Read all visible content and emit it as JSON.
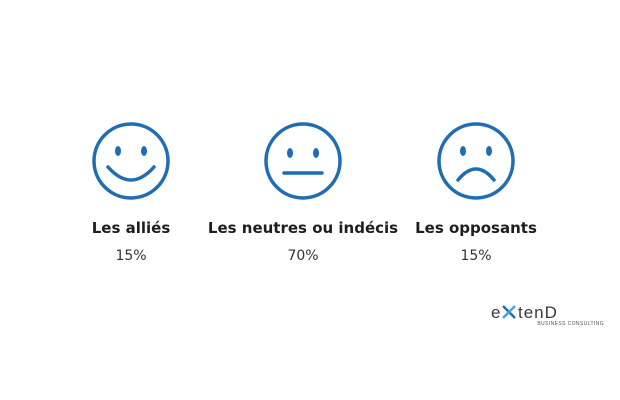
{
  "items": [
    {
      "label": "Les alliés",
      "value": "15%"
    },
    {
      "label": "Les neutres ou indécis",
      "value": "70%"
    },
    {
      "label": "Les opposants",
      "value": "15%"
    }
  ],
  "logo": {
    "prefix": "e",
    "suffix": "tenD",
    "tagline": "BUSINESS CONSULTING"
  }
}
